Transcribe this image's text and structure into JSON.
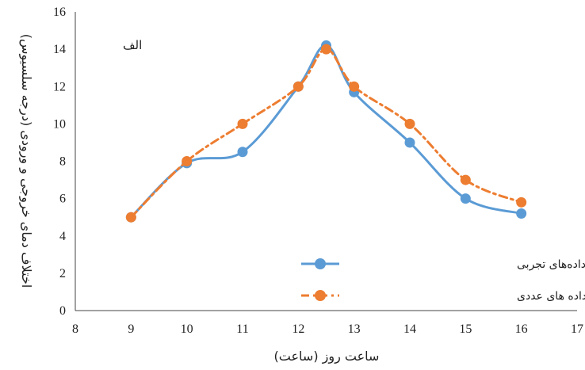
{
  "chart_data": {
    "type": "line",
    "title": "",
    "annotation": "الف",
    "xlabel": "ساعت روز (ساعت)",
    "ylabel": "اختلاف دمای خروجی و ورودی (درجه سلسیوس)",
    "xlim": [
      8,
      17
    ],
    "ylim": [
      0,
      16
    ],
    "xticks": [
      8,
      9,
      10,
      11,
      12,
      13,
      14,
      15,
      16,
      17
    ],
    "yticks": [
      0,
      2,
      4,
      6,
      8,
      10,
      12,
      14,
      16
    ],
    "grid": false,
    "legend_position": "bottom-right",
    "series": [
      {
        "name": "اختلاف دمای داده‌های تجربی",
        "color": "#5B9BD5",
        "line_style": "solid-smooth",
        "marker": "circle",
        "x": [
          9,
          10,
          11,
          12,
          12.5,
          13,
          14,
          15,
          16
        ],
        "y": [
          5,
          7.9,
          8.5,
          12,
          14.2,
          11.7,
          9,
          6,
          5.2
        ]
      },
      {
        "name": "اختلاف دمای داده های عددی",
        "color": "#ED7D31",
        "line_style": "dash-dot",
        "marker": "circle",
        "x": [
          9,
          10,
          11,
          12,
          12.5,
          13,
          14,
          15,
          16
        ],
        "y": [
          5,
          8,
          10,
          12,
          14,
          12,
          10,
          7,
          5.8
        ]
      }
    ]
  }
}
